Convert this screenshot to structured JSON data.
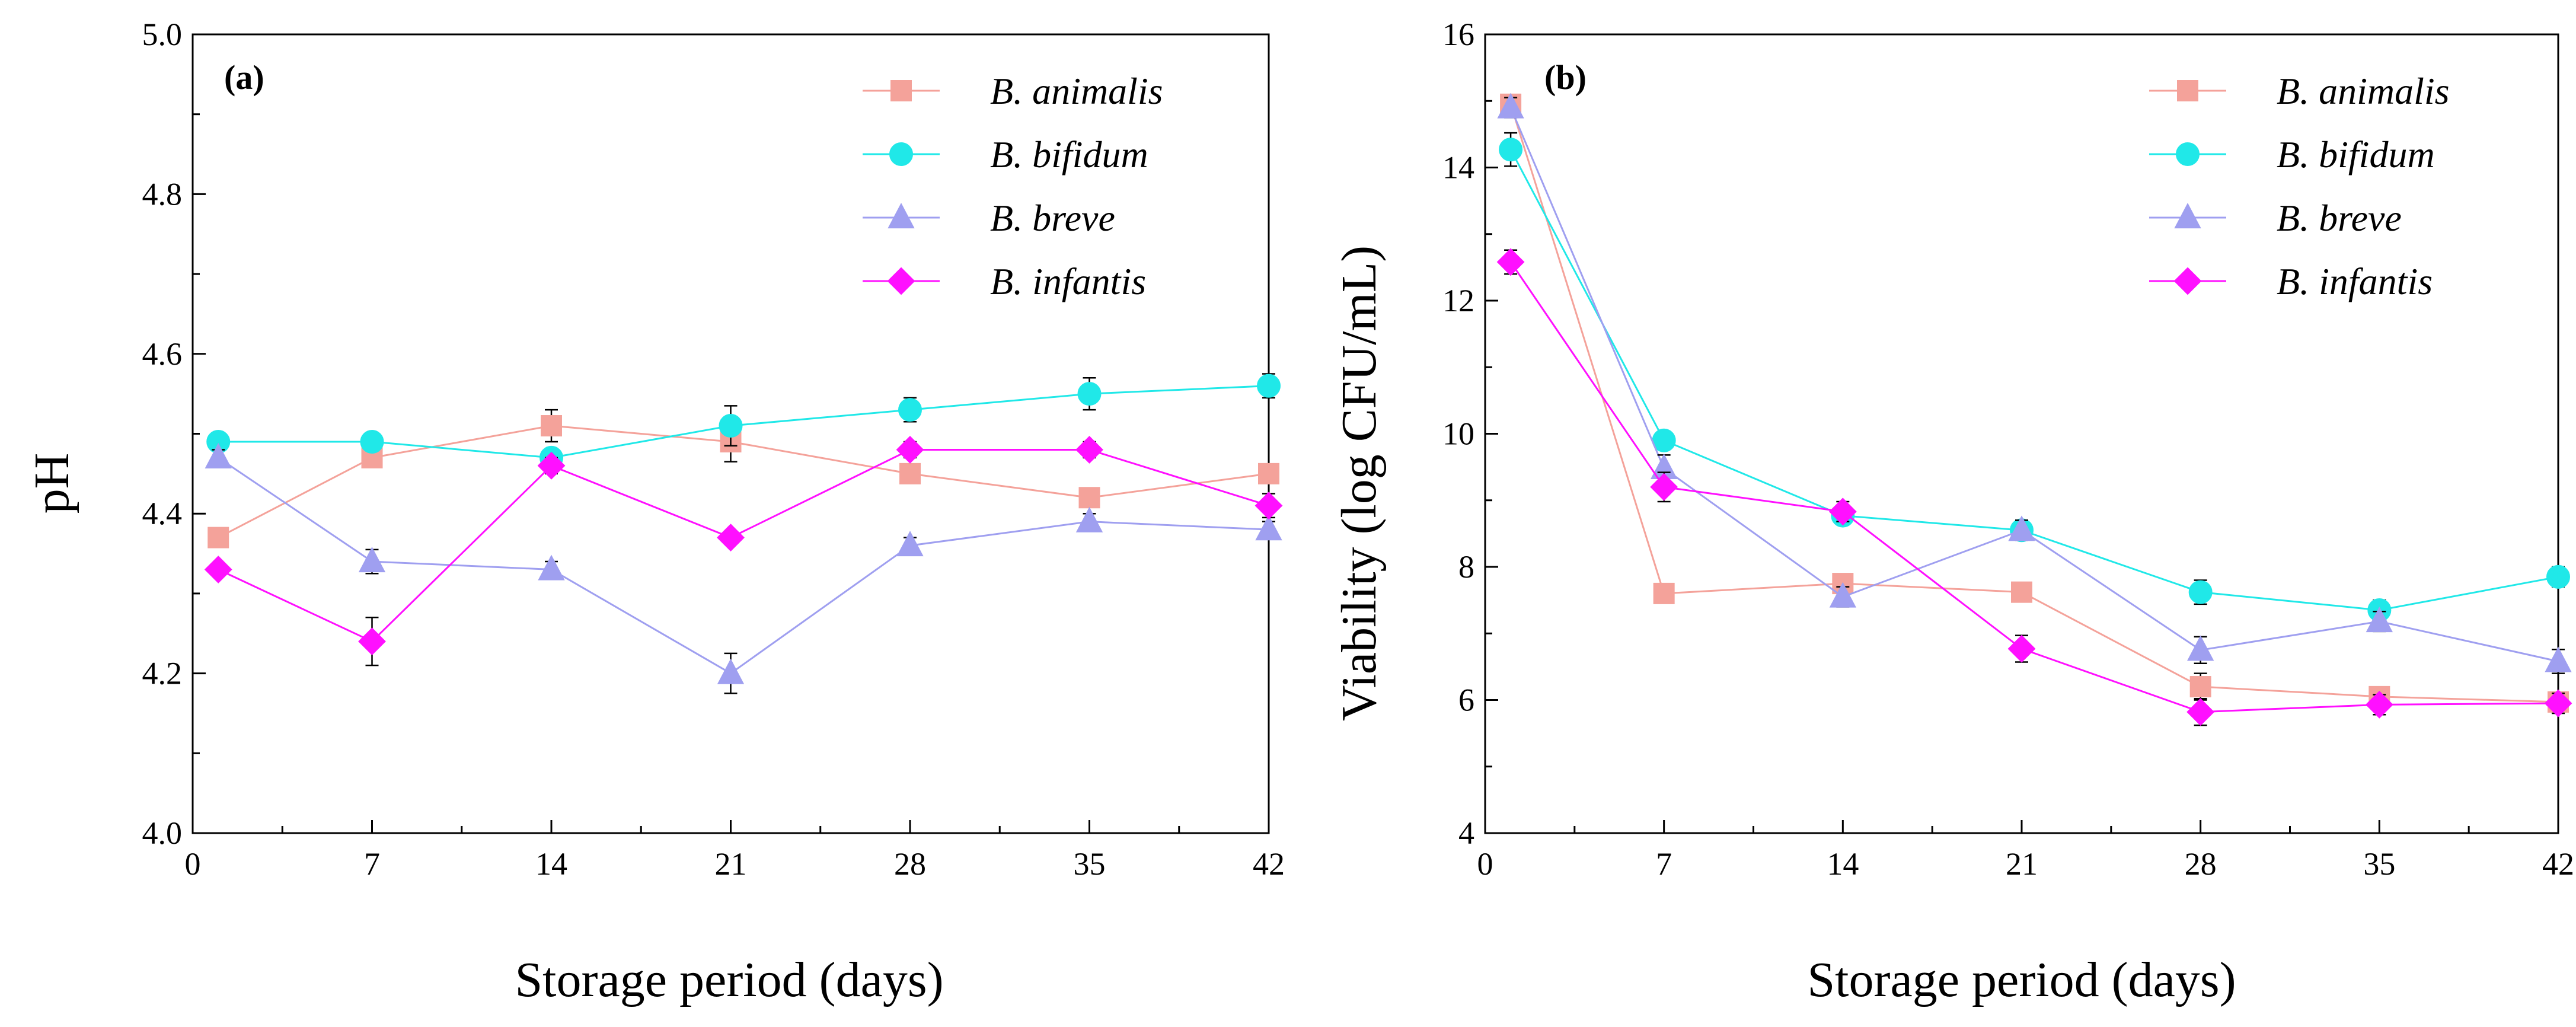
{
  "chart_data": [
    {
      "type": "line",
      "panel_label": "(a)",
      "xlabel": "Storage period (days)",
      "ylabel": "pH",
      "xlim": [
        0,
        42
      ],
      "ylim": [
        4.0,
        5.0
      ],
      "x_major_ticks": [
        0,
        7,
        14,
        21,
        28,
        35,
        42
      ],
      "x_tick_labels": [
        "0",
        "7",
        "14",
        "21",
        "28",
        "35",
        "42"
      ],
      "y_major_ticks": [
        4.0,
        4.2,
        4.4,
        4.6,
        4.8,
        5.0
      ],
      "y_tick_labels": [
        "4.0",
        "4.2",
        "4.4",
        "4.6",
        "4.8",
        "5.0"
      ],
      "grid": false,
      "legend_position": "top-right",
      "x": [
        1,
        7,
        14,
        21,
        28,
        35,
        42
      ],
      "series": [
        {
          "name": "B. animalis",
          "color": "#f4a29a",
          "marker": "square",
          "values": [
            4.37,
            4.47,
            4.51,
            4.49,
            4.45,
            4.42,
            4.45
          ],
          "errors": [
            0.005,
            0.01,
            0.02,
            0.025,
            0.01,
            0.01,
            0.01
          ]
        },
        {
          "name": "B. bifidum",
          "color": "#20e8e8",
          "marker": "circle",
          "values": [
            4.49,
            4.49,
            4.47,
            4.51,
            4.53,
            4.55,
            4.56
          ],
          "errors": [
            0.008,
            0.01,
            0.01,
            0.025,
            0.015,
            0.02,
            0.015
          ]
        },
        {
          "name": "B. breve",
          "color": "#9f9ff0",
          "marker": "triangle",
          "values": [
            4.47,
            4.34,
            4.33,
            4.2,
            4.36,
            4.39,
            4.38
          ],
          "errors": [
            0.01,
            0.015,
            0.01,
            0.025,
            0.01,
            0.01,
            0.01
          ]
        },
        {
          "name": "B. infantis",
          "color": "#ff10ff",
          "marker": "diamond",
          "values": [
            4.33,
            4.24,
            4.46,
            4.37,
            4.48,
            4.48,
            4.41
          ],
          "errors": [
            0.005,
            0.03,
            0.01,
            0.005,
            0.01,
            0.01,
            0.015
          ]
        }
      ]
    },
    {
      "type": "line",
      "panel_label": "(b)",
      "xlabel": "Storage period (days)",
      "ylabel": "Viability (log CFU/mL)",
      "xlim": [
        0,
        42
      ],
      "ylim": [
        4,
        16
      ],
      "x_major_ticks": [
        0,
        7,
        14,
        21,
        28,
        35,
        42
      ],
      "x_tick_labels": [
        "0",
        "7",
        "14",
        "21",
        "28",
        "35",
        "42"
      ],
      "y_major_ticks": [
        4,
        6,
        8,
        10,
        12,
        14,
        16
      ],
      "y_tick_labels": [
        "4",
        "6",
        "8",
        "10",
        "12",
        "14",
        "16"
      ],
      "grid": false,
      "legend_position": "top-right",
      "x": [
        1,
        7,
        14,
        21,
        28,
        35,
        42
      ],
      "series": [
        {
          "name": "B. animalis",
          "color": "#f4a29a",
          "marker": "square",
          "values": [
            14.95,
            7.6,
            7.75,
            7.62,
            6.2,
            6.05,
            5.97
          ],
          "errors": [
            0.12,
            0.12,
            0.12,
            0.1,
            0.2,
            0.12,
            0.1
          ]
        },
        {
          "name": "B. bifidum",
          "color": "#20e8e8",
          "marker": "circle",
          "values": [
            14.27,
            9.9,
            8.77,
            8.55,
            7.62,
            7.35,
            7.85
          ],
          "errors": [
            0.25,
            0.12,
            0.12,
            0.15,
            0.18,
            0.15,
            0.15
          ]
        },
        {
          "name": "B. breve",
          "color": "#9f9ff0",
          "marker": "triangle",
          "values": [
            14.9,
            9.48,
            7.55,
            8.55,
            6.75,
            7.18,
            6.58
          ],
          "errors": [
            0.15,
            0.2,
            0.15,
            0.15,
            0.2,
            0.15,
            0.18
          ]
        },
        {
          "name": "B. infantis",
          "color": "#ff10ff",
          "marker": "diamond",
          "values": [
            12.58,
            9.2,
            8.83,
            6.77,
            5.82,
            5.93,
            5.95
          ],
          "errors": [
            0.18,
            0.22,
            0.15,
            0.2,
            0.2,
            0.15,
            0.15
          ]
        }
      ]
    }
  ]
}
